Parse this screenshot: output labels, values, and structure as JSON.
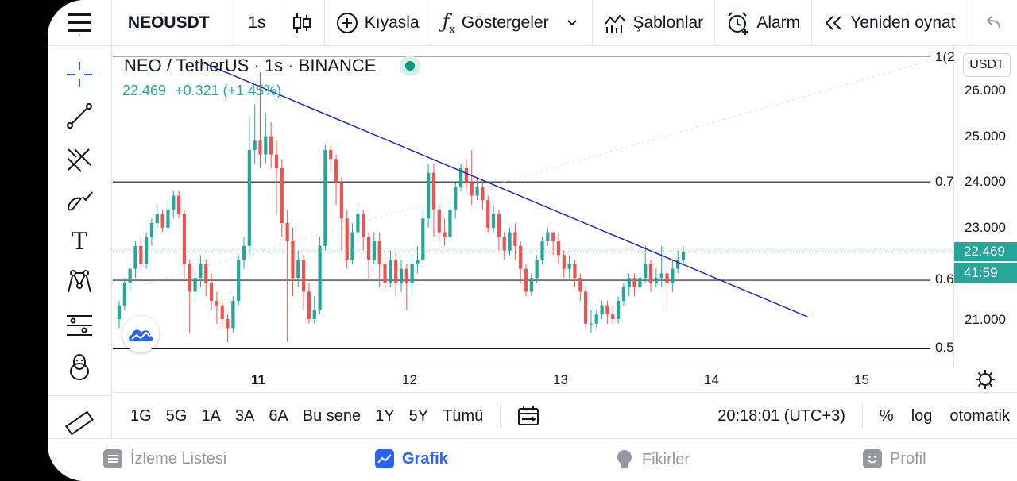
{
  "toolbar": {
    "symbol": "NEOUSDT",
    "interval": "1s",
    "compare": "Kıyasla",
    "indicators": "Göstergeler",
    "templates": "Şablonlar",
    "alarm": "Alarm",
    "replay": "Yeniden oynat"
  },
  "legend": {
    "title": "NEO / TetherUS · 1s · BINANCE",
    "last": "22.469",
    "change": "+0.321 (+1.45%)"
  },
  "price_scale": {
    "unit": "USDT",
    "ticks": [
      "26.000",
      "25.000",
      "24.000",
      "23.000",
      "21.000"
    ],
    "current_price": "22.469",
    "countdown": "41:59"
  },
  "fib_labels": [
    "1(2",
    "0.7",
    "0.6",
    "0.5"
  ],
  "time_axis": {
    "ticks": [
      "11",
      "12",
      "13",
      "14",
      "15"
    ]
  },
  "range_bar": {
    "ranges": [
      "1G",
      "5G",
      "1A",
      "3A",
      "6A",
      "Bu sene",
      "1Y",
      "5Y",
      "Tümü"
    ],
    "clock": "20:18:01 (UTC+3)",
    "percent": "%",
    "log": "log",
    "auto": "otomatik"
  },
  "bottom_nav": {
    "watchlist": "İzleme Listesi",
    "chart": "Grafik",
    "ideas": "Fikirler",
    "profile": "Profil"
  },
  "colors": {
    "up": "#26a69a",
    "down": "#ef5350",
    "trendline": "#1e1eb4",
    "accent": "#2962ff"
  },
  "chart_data": {
    "type": "candlestick",
    "symbol": "NEO / TetherUS",
    "exchange": "BINANCE",
    "x_ticks": [
      "11",
      "12",
      "13",
      "14",
      "15"
    ],
    "ylim": [
      20.45,
      26.8
    ],
    "y_ticks": [
      21,
      23,
      24,
      25,
      26
    ],
    "horizontal_levels": [
      {
        "label": "1(2",
        "value": 26.75
      },
      {
        "label": "0.7",
        "value": 24.0
      },
      {
        "label": "0.6",
        "value": 21.85
      },
      {
        "label": "0.5",
        "value": 20.35
      }
    ],
    "trendline": {
      "from": {
        "x": 10.75,
        "y": 26.6
      },
      "to": {
        "x": 14.75,
        "y": 21.05
      }
    },
    "last_price": 22.469,
    "candles": [
      [
        21.0,
        21.3,
        20.8,
        21.4
      ],
      [
        21.3,
        21.8,
        21.2,
        21.9
      ],
      [
        21.8,
        22.1,
        21.6,
        22.2
      ],
      [
        22.1,
        22.6,
        21.9,
        22.7
      ],
      [
        22.6,
        22.2,
        22.1,
        22.8
      ],
      [
        22.2,
        22.8,
        22.1,
        22.9
      ],
      [
        22.8,
        23.1,
        22.6,
        23.2
      ],
      [
        23.1,
        23.3,
        23.0,
        23.5
      ],
      [
        23.3,
        23.0,
        22.9,
        23.4
      ],
      [
        23.0,
        23.4,
        22.9,
        23.6
      ],
      [
        23.4,
        23.7,
        23.2,
        23.8
      ],
      [
        23.7,
        23.3,
        23.2,
        23.8
      ],
      [
        23.3,
        22.2,
        21.9,
        23.4
      ],
      [
        22.2,
        21.6,
        20.7,
        22.3
      ],
      [
        21.6,
        21.9,
        21.4,
        22.1
      ],
      [
        21.9,
        22.2,
        21.7,
        22.4
      ],
      [
        22.2,
        21.8,
        21.5,
        22.3
      ],
      [
        21.8,
        21.4,
        21.2,
        22.0
      ],
      [
        21.4,
        21.3,
        20.9,
        21.6
      ],
      [
        21.3,
        21.0,
        20.8,
        21.4
      ],
      [
        21.0,
        20.8,
        20.5,
        21.1
      ],
      [
        20.8,
        21.4,
        20.7,
        21.5
      ],
      [
        21.4,
        22.3,
        21.3,
        22.4
      ],
      [
        22.3,
        22.6,
        22.1,
        22.8
      ],
      [
        22.6,
        24.7,
        22.4,
        25.4
      ],
      [
        24.7,
        24.9,
        24.4,
        25.7
      ],
      [
        24.9,
        24.6,
        24.3,
        26.4
      ],
      [
        24.6,
        25.0,
        24.4,
        25.5
      ],
      [
        25.0,
        24.6,
        24.3,
        25.3
      ],
      [
        24.6,
        24.3,
        23.3,
        24.9
      ],
      [
        24.3,
        23.1,
        22.8,
        24.5
      ],
      [
        23.1,
        22.7,
        20.5,
        23.4
      ],
      [
        22.7,
        21.9,
        21.5,
        23.0
      ],
      [
        21.9,
        22.3,
        21.7,
        22.5
      ],
      [
        22.3,
        21.6,
        21.2,
        22.4
      ],
      [
        21.6,
        21.0,
        20.9,
        21.8
      ],
      [
        21.0,
        21.2,
        20.9,
        21.5
      ],
      [
        21.2,
        22.6,
        21.1,
        22.8
      ],
      [
        22.6,
        24.7,
        22.5,
        24.8
      ],
      [
        24.7,
        24.5,
        24.2,
        24.8
      ],
      [
        24.5,
        24.0,
        23.5,
        24.6
      ],
      [
        24.0,
        23.2,
        22.5,
        24.1
      ],
      [
        23.2,
        22.3,
        22.1,
        23.4
      ],
      [
        22.3,
        22.9,
        22.2,
        23.1
      ],
      [
        22.9,
        23.3,
        22.7,
        23.5
      ],
      [
        23.3,
        22.8,
        22.5,
        23.4
      ],
      [
        22.8,
        22.3,
        21.9,
        22.9
      ],
      [
        22.3,
        22.7,
        22.2,
        22.9
      ],
      [
        22.7,
        22.2,
        21.7,
        22.9
      ],
      [
        22.2,
        21.8,
        21.6,
        22.4
      ],
      [
        21.8,
        22.3,
        21.7,
        22.5
      ],
      [
        22.3,
        21.8,
        21.5,
        22.5
      ],
      [
        21.8,
        22.1,
        21.6,
        22.3
      ],
      [
        22.1,
        21.8,
        21.2,
        22.2
      ],
      [
        21.8,
        22.2,
        21.5,
        22.4
      ],
      [
        22.2,
        22.3,
        22.0,
        22.6
      ],
      [
        22.3,
        23.2,
        22.2,
        23.4
      ],
      [
        23.2,
        24.2,
        23.0,
        24.4
      ],
      [
        24.2,
        23.4,
        22.8,
        24.4
      ],
      [
        23.4,
        22.9,
        22.7,
        23.5
      ],
      [
        22.9,
        22.8,
        22.6,
        23.2
      ],
      [
        22.8,
        23.4,
        22.7,
        23.6
      ],
      [
        23.4,
        23.9,
        23.2,
        24.0
      ],
      [
        23.9,
        24.3,
        23.8,
        24.4
      ],
      [
        24.3,
        24.0,
        23.8,
        24.5
      ],
      [
        24.0,
        23.7,
        23.5,
        24.7
      ],
      [
        23.7,
        23.9,
        23.6,
        24.1
      ],
      [
        23.9,
        23.6,
        23.4,
        24.0
      ],
      [
        23.6,
        23.0,
        22.9,
        23.7
      ],
      [
        23.0,
        23.3,
        22.9,
        23.5
      ],
      [
        23.3,
        22.8,
        22.5,
        23.4
      ],
      [
        22.8,
        22.5,
        22.3,
        22.9
      ],
      [
        22.5,
        22.9,
        22.4,
        23.0
      ],
      [
        22.9,
        22.6,
        22.3,
        23.1
      ],
      [
        22.6,
        22.1,
        21.8,
        22.7
      ],
      [
        22.1,
        21.6,
        21.5,
        22.2
      ],
      [
        21.6,
        21.9,
        21.5,
        22.0
      ],
      [
        21.9,
        22.3,
        21.8,
        22.4
      ],
      [
        22.3,
        22.7,
        22.2,
        22.8
      ],
      [
        22.7,
        22.9,
        22.6,
        23.0
      ],
      [
        22.9,
        22.7,
        22.4,
        22.9
      ],
      [
        22.7,
        22.4,
        22.2,
        22.9
      ],
      [
        22.4,
        22.1,
        21.9,
        22.5
      ],
      [
        22.1,
        22.2,
        21.9,
        22.4
      ],
      [
        22.2,
        21.9,
        21.7,
        22.3
      ],
      [
        21.9,
        21.6,
        21.4,
        22.0
      ],
      [
        21.6,
        20.9,
        20.8,
        21.7
      ],
      [
        20.9,
        20.9,
        20.7,
        21.2
      ],
      [
        20.9,
        21.1,
        20.8,
        21.2
      ],
      [
        21.1,
        21.3,
        21.0,
        21.4
      ],
      [
        21.3,
        21.1,
        20.9,
        21.4
      ],
      [
        21.1,
        21.0,
        20.9,
        21.3
      ],
      [
        21.0,
        21.4,
        20.9,
        21.5
      ],
      [
        21.4,
        21.7,
        21.3,
        21.8
      ],
      [
        21.7,
        21.9,
        21.5,
        22.0
      ],
      [
        21.9,
        21.7,
        21.5,
        22.0
      ],
      [
        21.7,
        21.9,
        21.6,
        22.0
      ],
      [
        21.9,
        22.2,
        21.8,
        22.6
      ],
      [
        22.2,
        21.8,
        21.6,
        22.3
      ],
      [
        21.8,
        21.9,
        21.7,
        22.1
      ],
      [
        21.9,
        22.0,
        21.7,
        22.6
      ],
      [
        22.0,
        21.8,
        21.2,
        22.2
      ],
      [
        21.8,
        22.1,
        21.6,
        22.3
      ],
      [
        22.1,
        22.3,
        22.0,
        22.5
      ],
      [
        22.3,
        22.47,
        22.2,
        22.6
      ]
    ]
  }
}
